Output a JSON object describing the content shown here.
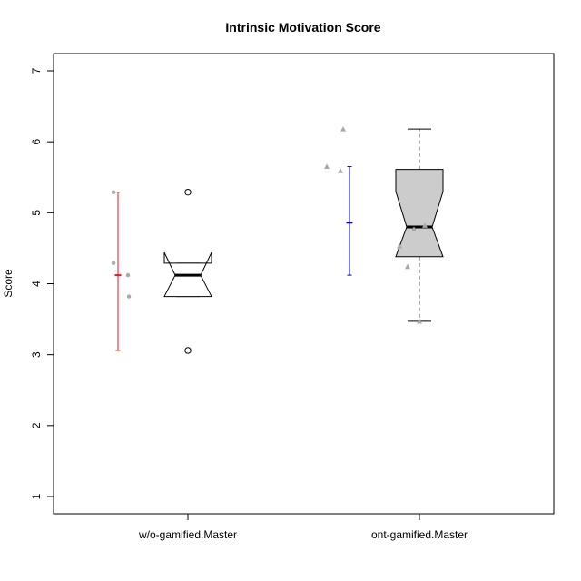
{
  "chart_data": {
    "type": "box",
    "title": "Intrinsic Motivation Score",
    "xlabel": "",
    "ylabel": "Score",
    "ylim": [
      1,
      7
    ],
    "yticks": [
      1,
      2,
      3,
      4,
      5,
      6,
      7
    ],
    "notched_boxplot": true,
    "grid": false,
    "categories": [
      "w/o-gamified.Master",
      "ont-gamified.Master"
    ],
    "groups": [
      {
        "category": "w/o-gamified.Master",
        "box_fill": "#ffffff",
        "box": {
          "whisker_low": 3.82,
          "q1": 3.82,
          "median": 4.12,
          "q3": 4.29,
          "whisker_high": 4.29,
          "notch_low": 3.82,
          "notch_high": 4.44
        },
        "outliers": [
          5.29,
          3.06
        ],
        "points": {
          "shape": "circle",
          "color": "#a8a8a8",
          "values": [
            4.29,
            3.82,
            4.12,
            5.29
          ]
        },
        "mean_bar": {
          "color": "#e41a1c",
          "mean": 4.12,
          "low": 3.06,
          "high": 5.29
        }
      },
      {
        "category": "ont-gamified.Master",
        "box_fill": "#cccccc",
        "box": {
          "whisker_low": 3.47,
          "q1": 4.38,
          "median": 4.8,
          "q3": 5.61,
          "whisker_high": 6.18,
          "notch_low": 4.38,
          "notch_high": 5.3
        },
        "outliers": [],
        "points": {
          "shape": "triangle",
          "color": "#a8a8a8",
          "values": [
            5.65,
            5.59,
            6.18,
            4.77,
            4.24,
            4.53,
            4.82,
            3.47
          ]
        },
        "mean_bar": {
          "color": "#0000cd",
          "mean": 4.86,
          "low": 4.12,
          "high": 5.65
        }
      }
    ]
  }
}
